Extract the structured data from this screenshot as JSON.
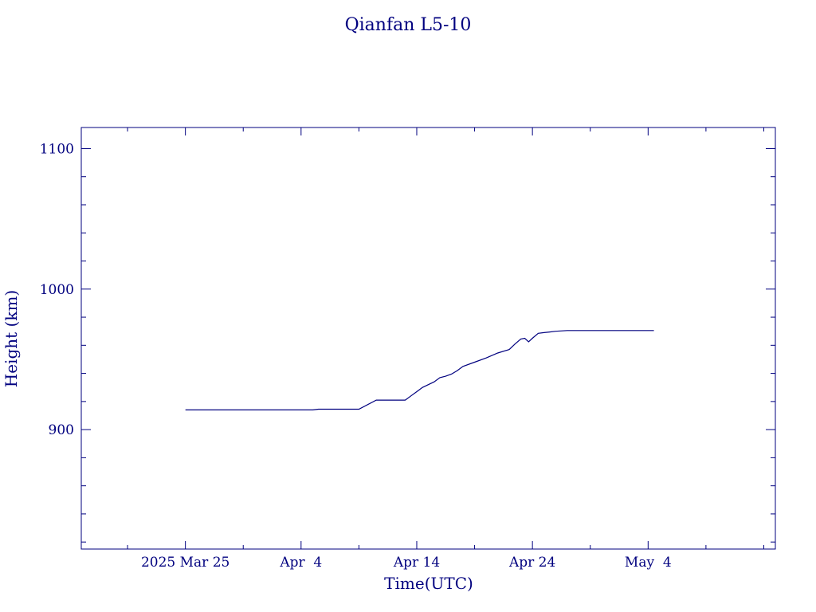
{
  "chart_data": {
    "type": "line",
    "title": "Qianfan L5-10",
    "xlabel": "Time(UTC)",
    "ylabel": "Height (km)",
    "ylim": [
      815,
      1115
    ],
    "xlim": [
      "2025-03-16",
      "2025-05-15"
    ],
    "grid": false,
    "x_ticks": [
      {
        "date": "2025-03-25",
        "label": "2025 Mar 25"
      },
      {
        "date": "2025-04-04",
        "label": "Apr  4"
      },
      {
        "date": "2025-04-14",
        "label": "Apr 14"
      },
      {
        "date": "2025-04-24",
        "label": "Apr 24"
      },
      {
        "date": "2025-05-04",
        "label": "May  4"
      }
    ],
    "y_ticks": [
      {
        "value": 900,
        "label": "900"
      },
      {
        "value": 1000,
        "label": "1000"
      },
      {
        "value": 1100,
        "label": "1100"
      }
    ],
    "series": [
      {
        "color": "#00007f",
        "points": [
          [
            "2025-03-25",
            914
          ],
          [
            "2025-04-05",
            914
          ],
          [
            "2025-04-05 12:00",
            914.5
          ],
          [
            "2025-04-09",
            914.5
          ],
          [
            "2025-04-10 12:00",
            921
          ],
          [
            "2025-04-13",
            921
          ],
          [
            "2025-04-13 12:00",
            924
          ],
          [
            "2025-04-14",
            927
          ],
          [
            "2025-04-14 12:00",
            930
          ],
          [
            "2025-04-15",
            932
          ],
          [
            "2025-04-15 12:00",
            934
          ],
          [
            "2025-04-16",
            937
          ],
          [
            "2025-04-16 12:00",
            938
          ],
          [
            "2025-04-17",
            939.5
          ],
          [
            "2025-04-17 12:00",
            942
          ],
          [
            "2025-04-18",
            945
          ],
          [
            "2025-04-19",
            948
          ],
          [
            "2025-04-20",
            951
          ],
          [
            "2025-04-21",
            954.5
          ],
          [
            "2025-04-22",
            957
          ],
          [
            "2025-04-22 12:00",
            961
          ],
          [
            "2025-04-23",
            964.5
          ],
          [
            "2025-04-23 08:00",
            965
          ],
          [
            "2025-04-23 16:00",
            962.5
          ],
          [
            "2025-04-24",
            965
          ],
          [
            "2025-04-24 12:00",
            968.5
          ],
          [
            "2025-04-25",
            969
          ],
          [
            "2025-04-25 12:00",
            969.5
          ],
          [
            "2025-04-26",
            970
          ],
          [
            "2025-04-27",
            970.5
          ],
          [
            "2025-05-04",
            970.5
          ],
          [
            "2025-05-04 12:00",
            970.5
          ]
        ]
      }
    ]
  }
}
